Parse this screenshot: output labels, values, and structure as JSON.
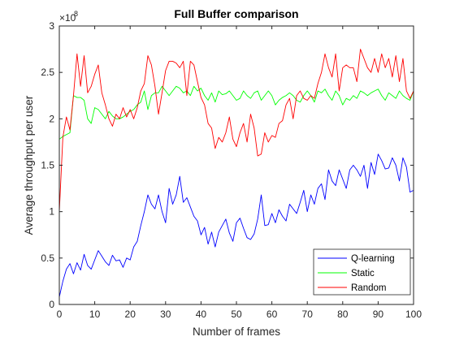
{
  "chart_data": {
    "type": "line",
    "title": "Full Buffer comparison",
    "xlabel": "Number of frames",
    "ylabel": "Average throughput per user",
    "y_exponent_label": "×10",
    "y_exponent_value": "8",
    "xlim": [
      0,
      100
    ],
    "ylim": [
      0,
      3
    ],
    "x_ticks": [
      0,
      10,
      20,
      30,
      40,
      50,
      60,
      70,
      80,
      90,
      100
    ],
    "y_ticks": [
      0,
      0.5,
      1,
      1.5,
      2,
      2.5,
      3
    ],
    "y_tick_labels": [
      "0",
      "0.5",
      "1",
      "1.5",
      "2",
      "2.5",
      "3"
    ],
    "grid": false,
    "legend_position": "bottom-right",
    "series": [
      {
        "name": "Q-learning",
        "color": "#0000ff",
        "values": [
          0.08,
          0.25,
          0.38,
          0.44,
          0.33,
          0.45,
          0.37,
          0.54,
          0.42,
          0.38,
          0.48,
          0.58,
          0.52,
          0.46,
          0.42,
          0.53,
          0.47,
          0.48,
          0.4,
          0.5,
          0.48,
          0.62,
          0.68,
          0.85,
          1.0,
          1.18,
          1.08,
          1.03,
          1.18,
          1.0,
          0.88,
          1.25,
          1.08,
          1.18,
          1.38,
          1.1,
          1.15,
          1.05,
          0.95,
          0.9,
          0.75,
          0.83,
          0.65,
          0.78,
          0.62,
          0.78,
          0.85,
          0.92,
          0.77,
          0.68,
          0.88,
          0.93,
          0.82,
          0.72,
          0.7,
          0.76,
          0.92,
          1.18,
          0.85,
          0.86,
          0.98,
          0.88,
          1.02,
          0.95,
          0.9,
          1.08,
          1.03,
          0.98,
          1.1,
          1.23,
          1.0,
          1.18,
          1.08,
          1.25,
          1.3,
          1.13,
          1.45,
          1.33,
          1.28,
          1.45,
          1.35,
          1.25,
          1.45,
          1.5,
          1.45,
          1.38,
          1.5,
          1.25,
          1.53,
          1.4,
          1.62,
          1.55,
          1.46,
          1.47,
          1.58,
          1.5,
          1.33,
          1.58,
          1.48,
          1.21,
          1.23
        ]
      },
      {
        "name": "Static",
        "color": "#00ff00",
        "values": [
          1.78,
          1.81,
          1.83,
          1.85,
          2.25,
          2.23,
          2.23,
          2.2,
          2.0,
          1.95,
          2.12,
          2.1,
          2.05,
          2.0,
          2.08,
          2.03,
          2.0,
          2.0,
          2.02,
          2.05,
          2.08,
          2.1,
          2.15,
          2.18,
          2.3,
          2.1,
          2.25,
          2.28,
          2.28,
          2.35,
          2.3,
          2.25,
          2.3,
          2.35,
          2.33,
          2.28,
          2.3,
          2.25,
          2.35,
          2.3,
          2.33,
          2.25,
          2.2,
          2.28,
          2.18,
          2.3,
          2.26,
          2.27,
          2.3,
          2.25,
          2.2,
          2.22,
          2.3,
          2.25,
          2.22,
          2.28,
          2.3,
          2.2,
          2.25,
          2.3,
          2.25,
          2.15,
          2.2,
          2.23,
          2.25,
          2.28,
          2.25,
          2.2,
          2.18,
          2.25,
          2.3,
          2.25,
          2.18,
          2.3,
          2.28,
          2.32,
          2.25,
          2.2,
          2.3,
          2.25,
          2.15,
          2.22,
          2.2,
          2.25,
          2.22,
          2.3,
          2.28,
          2.25,
          2.28,
          2.3,
          2.32,
          2.25,
          2.2,
          2.28,
          2.25,
          2.22,
          2.3,
          2.25,
          2.22,
          2.2,
          2.3
        ]
      },
      {
        "name": "Random",
        "color": "#ff0000",
        "values": [
          1.0,
          1.8,
          2.02,
          1.88,
          2.25,
          2.7,
          2.35,
          2.68,
          2.28,
          2.35,
          2.48,
          2.58,
          2.28,
          2.15,
          2.0,
          1.92,
          2.05,
          2.0,
          2.12,
          2.02,
          2.1,
          2.0,
          2.12,
          2.3,
          2.38,
          2.68,
          2.58,
          2.35,
          2.05,
          2.28,
          2.52,
          2.62,
          2.62,
          2.6,
          2.55,
          2.62,
          2.25,
          2.62,
          2.58,
          2.4,
          2.23,
          2.15,
          1.95,
          1.9,
          1.68,
          1.8,
          1.75,
          1.85,
          2.02,
          1.78,
          1.7,
          1.85,
          1.95,
          1.75,
          2.05,
          1.9,
          1.6,
          1.62,
          1.85,
          1.75,
          1.82,
          1.8,
          1.95,
          1.98,
          2.15,
          2.22,
          2.0,
          2.25,
          2.3,
          2.22,
          2.2,
          2.25,
          2.22,
          2.38,
          2.5,
          2.7,
          2.55,
          2.45,
          2.7,
          2.3,
          2.55,
          2.58,
          2.55,
          2.55,
          2.4,
          2.75,
          2.65,
          2.55,
          2.5,
          2.65,
          2.5,
          2.7,
          2.55,
          2.65,
          2.45,
          2.68,
          2.4,
          2.65,
          2.3,
          2.22,
          2.3
        ]
      }
    ]
  }
}
